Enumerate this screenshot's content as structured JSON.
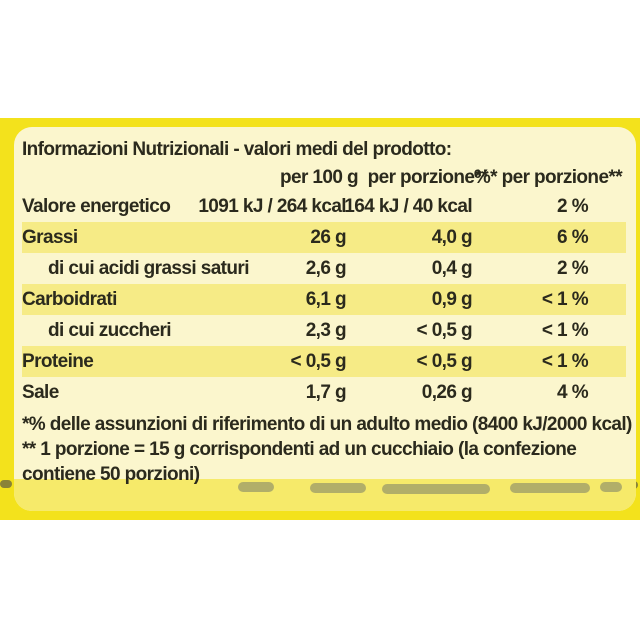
{
  "label": {
    "title": "Informazioni Nutrizionali - valori medi del prodotto:",
    "columns": [
      "per 100 g",
      "per porzione**",
      "%* per porzione**"
    ],
    "rows": [
      {
        "name": "Valore energetico",
        "per100": "1091 kJ / 264 kcal",
        "portion": "164 kJ / 40 kcal",
        "percent": "2 %"
      },
      {
        "name": "Grassi",
        "per100": "26 g",
        "portion": "4,0 g",
        "percent": "6 %"
      },
      {
        "name": "di cui acidi grassi saturi",
        "per100": "2,6 g",
        "portion": "0,4 g",
        "percent": "2 %"
      },
      {
        "name": "Carboidrati",
        "per100": "6,1 g",
        "portion": "0,9 g",
        "percent": "< 1 %"
      },
      {
        "name": "di cui zuccheri",
        "per100": "2,3 g",
        "portion": "< 0,5 g",
        "percent": "< 1 %"
      },
      {
        "name": "Proteine",
        "per100": "< 0,5 g",
        "portion": "< 0,5 g",
        "percent": "< 1 %"
      },
      {
        "name": "Sale",
        "per100": "1,7 g",
        "portion": "0,26 g",
        "percent": "4 %"
      }
    ],
    "footnote_1": "*% delle assunzioni di riferimento di un adulto medio (8400 kJ/2000 kcal)",
    "footnote_2_line1": "** 1 porzione = 15 g corrispondenti ad un cucchiaio (la confezione",
    "footnote_2_line2": "contiene 50 porzioni)"
  },
  "colors": {
    "packaging_yellow": "#f3e21c",
    "panel_background": "#fbf6cd",
    "row_band": "#f6eb86",
    "text": "#2b2a1d"
  }
}
